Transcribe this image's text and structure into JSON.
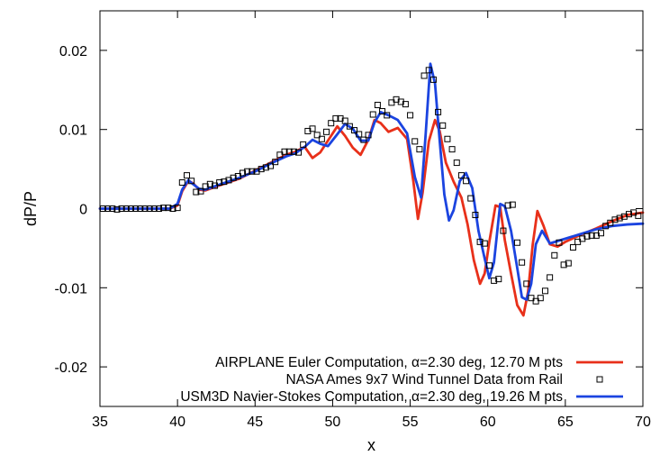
{
  "chart_data": {
    "type": "line",
    "title": "",
    "xlabel": "x",
    "ylabel": "dP/P",
    "xlim": [
      35,
      70
    ],
    "ylim": [
      -0.025,
      0.025
    ],
    "x_ticks": [
      35,
      40,
      45,
      50,
      55,
      60,
      65,
      70
    ],
    "x_tick_labels": [
      "35",
      "40",
      "45",
      "50",
      "55",
      "60",
      "65",
      "70"
    ],
    "y_ticks": [
      -0.02,
      -0.01,
      0,
      0.01,
      0.02
    ],
    "y_tick_labels": [
      "-0.02",
      "-0.01",
      "0",
      "0.01",
      "0.02"
    ],
    "grid": false,
    "legend_position": "bottom-right",
    "series": [
      {
        "name": "AIRPLANE Euler Computation, α=2.30 deg, 12.70 M pts",
        "kind": "line",
        "color": "#e8301a",
        "x": [
          35.0,
          39.5,
          40.0,
          40.3,
          40.7,
          41.0,
          41.4,
          41.8,
          42.5,
          44.0,
          45.0,
          46.0,
          47.0,
          47.6,
          48.2,
          48.7,
          49.2,
          49.7,
          50.3,
          50.8,
          51.3,
          51.8,
          52.3,
          52.7,
          53.1,
          53.6,
          54.2,
          54.8,
          55.2,
          55.5,
          55.8,
          56.2,
          56.6,
          56.9,
          57.3,
          57.8,
          58.3,
          58.7,
          59.1,
          59.5,
          59.8,
          60.1,
          60.5,
          60.8,
          61.1,
          61.5,
          61.9,
          62.3,
          62.6,
          62.9,
          63.2,
          63.6,
          64.0,
          64.5,
          65.0,
          66.0,
          67.0,
          68.0,
          69.0,
          70.0
        ],
        "y": [
          0.0,
          0.0,
          0.0004,
          0.0022,
          0.0035,
          0.0032,
          0.0024,
          0.0023,
          0.0028,
          0.0038,
          0.0048,
          0.0058,
          0.0068,
          0.0072,
          0.0078,
          0.0064,
          0.0071,
          0.0086,
          0.0104,
          0.0092,
          0.0077,
          0.0068,
          0.0087,
          0.0112,
          0.0108,
          0.0097,
          0.0102,
          0.0088,
          0.0035,
          -0.0013,
          0.002,
          0.0085,
          0.0112,
          0.0098,
          0.0058,
          0.0034,
          0.0014,
          -0.002,
          -0.0065,
          -0.0095,
          -0.0082,
          -0.0042,
          0.0004,
          0.0002,
          -0.004,
          -0.0082,
          -0.0122,
          -0.0135,
          -0.0105,
          -0.0045,
          -0.0003,
          -0.0022,
          -0.0045,
          -0.0048,
          -0.0042,
          -0.0033,
          -0.0025,
          -0.0016,
          -0.0008,
          -0.0005
        ]
      },
      {
        "name": "NASA Ames 9x7 Wind Tunnel Data from Rail",
        "kind": "markers",
        "marker": "square",
        "color": "#000000",
        "x": [
          35.2,
          35.5,
          35.8,
          36.1,
          36.4,
          36.7,
          37.0,
          37.3,
          37.6,
          37.9,
          38.2,
          38.5,
          38.8,
          39.1,
          39.4,
          39.7,
          40.0,
          40.3,
          40.6,
          40.9,
          41.2,
          41.5,
          41.8,
          42.1,
          42.4,
          42.7,
          43.0,
          43.3,
          43.6,
          43.9,
          44.2,
          44.5,
          44.8,
          45.1,
          45.4,
          45.7,
          46.0,
          46.3,
          46.6,
          46.9,
          47.2,
          47.5,
          47.8,
          48.1,
          48.4,
          48.7,
          49.0,
          49.3,
          49.6,
          49.9,
          50.2,
          50.5,
          50.8,
          51.1,
          51.4,
          51.7,
          52.0,
          52.3,
          52.6,
          52.9,
          53.2,
          53.5,
          53.8,
          54.1,
          54.4,
          54.7,
          55.0,
          55.3,
          55.6,
          55.9,
          56.2,
          56.5,
          56.8,
          57.1,
          57.4,
          57.7,
          58.0,
          58.3,
          58.6,
          58.9,
          59.2,
          59.5,
          59.8,
          60.1,
          60.4,
          60.7,
          61.0,
          61.3,
          61.6,
          61.9,
          62.2,
          62.5,
          62.8,
          63.1,
          63.4,
          63.7,
          64.0,
          64.3,
          64.6,
          64.9,
          65.2,
          65.5,
          65.8,
          66.1,
          66.4,
          66.7,
          67.0,
          67.3,
          67.6,
          67.9,
          68.2,
          68.5,
          68.8,
          69.1,
          69.4,
          69.7
        ],
        "y": [
          0.0,
          0.0,
          0.0,
          -0.0001,
          0.0,
          0.0,
          0.0,
          0.0,
          0.0,
          0.0,
          0.0,
          0.0,
          0.0,
          0.0001,
          0.0001,
          0.0,
          0.0001,
          0.0033,
          0.0042,
          0.0035,
          0.0021,
          0.0022,
          0.0028,
          0.0031,
          0.0029,
          0.0033,
          0.0034,
          0.0036,
          0.0039,
          0.0041,
          0.0045,
          0.0047,
          0.0047,
          0.0047,
          0.005,
          0.0052,
          0.0054,
          0.0059,
          0.0068,
          0.0072,
          0.0072,
          0.0072,
          0.0071,
          0.0081,
          0.0098,
          0.0101,
          0.0093,
          0.0088,
          0.0097,
          0.0108,
          0.0114,
          0.0114,
          0.0111,
          0.0104,
          0.0099,
          0.0094,
          0.0087,
          0.0093,
          0.0119,
          0.0131,
          0.0123,
          0.0118,
          0.0134,
          0.0138,
          0.0135,
          0.0132,
          0.0118,
          0.0085,
          0.0075,
          0.0168,
          0.0175,
          0.0163,
          0.0122,
          0.0105,
          0.0088,
          0.0075,
          0.0058,
          0.0042,
          0.0035,
          0.0013,
          -0.0008,
          -0.0042,
          -0.0044,
          -0.0072,
          -0.0091,
          -0.0089,
          -0.0028,
          0.0004,
          0.0005,
          -0.0043,
          -0.0068,
          -0.0095,
          -0.0113,
          -0.0117,
          -0.0113,
          -0.0104,
          -0.0087,
          -0.0059,
          -0.0043,
          -0.0071,
          -0.0069,
          -0.0049,
          -0.0042,
          -0.0038,
          -0.0035,
          -0.0034,
          -0.0034,
          -0.0031,
          -0.0022,
          -0.0018,
          -0.0014,
          -0.0012,
          -0.001,
          -0.0007,
          -0.0005,
          -0.0009
        ]
      },
      {
        "name": "USM3D Navier-Stokes Computation, α=2.30 deg, 19.26 M pts",
        "kind": "line",
        "color": "#1b44e0",
        "x": [
          35.0,
          39.5,
          40.0,
          40.3,
          40.7,
          41.0,
          41.4,
          41.8,
          42.5,
          44.0,
          45.0,
          46.0,
          47.0,
          47.6,
          48.2,
          48.7,
          49.2,
          49.7,
          50.3,
          50.8,
          51.3,
          51.8,
          52.3,
          52.7,
          53.1,
          53.6,
          54.2,
          54.8,
          55.3,
          55.7,
          56.0,
          56.3,
          56.6,
          56.9,
          57.2,
          57.5,
          57.8,
          58.2,
          58.6,
          59.0,
          59.4,
          59.8,
          60.1,
          60.4,
          60.8,
          61.1,
          61.5,
          61.9,
          62.2,
          62.5,
          62.8,
          63.1,
          63.5,
          64.0,
          65.0,
          66.0,
          67.0,
          68.0,
          69.0,
          70.0
        ],
        "y": [
          0.0,
          0.0,
          0.0006,
          0.0024,
          0.0036,
          0.0031,
          0.0025,
          0.0024,
          0.0029,
          0.0039,
          0.0047,
          0.0057,
          0.0066,
          0.007,
          0.0078,
          0.0087,
          0.0082,
          0.0079,
          0.0094,
          0.0107,
          0.0101,
          0.0086,
          0.0086,
          0.0109,
          0.0122,
          0.0118,
          0.0112,
          0.0095,
          0.004,
          0.0014,
          0.0095,
          0.0183,
          0.0158,
          0.0086,
          0.0018,
          -0.0015,
          -0.0002,
          0.0035,
          0.0045,
          0.0026,
          -0.0028,
          -0.0063,
          -0.0088,
          -0.0068,
          0.0006,
          0.0003,
          -0.0028,
          -0.0075,
          -0.0112,
          -0.0115,
          -0.0095,
          -0.0045,
          -0.0028,
          -0.0044,
          -0.0038,
          -0.0032,
          -0.0026,
          -0.0022,
          -0.002,
          -0.0019
        ]
      }
    ]
  }
}
